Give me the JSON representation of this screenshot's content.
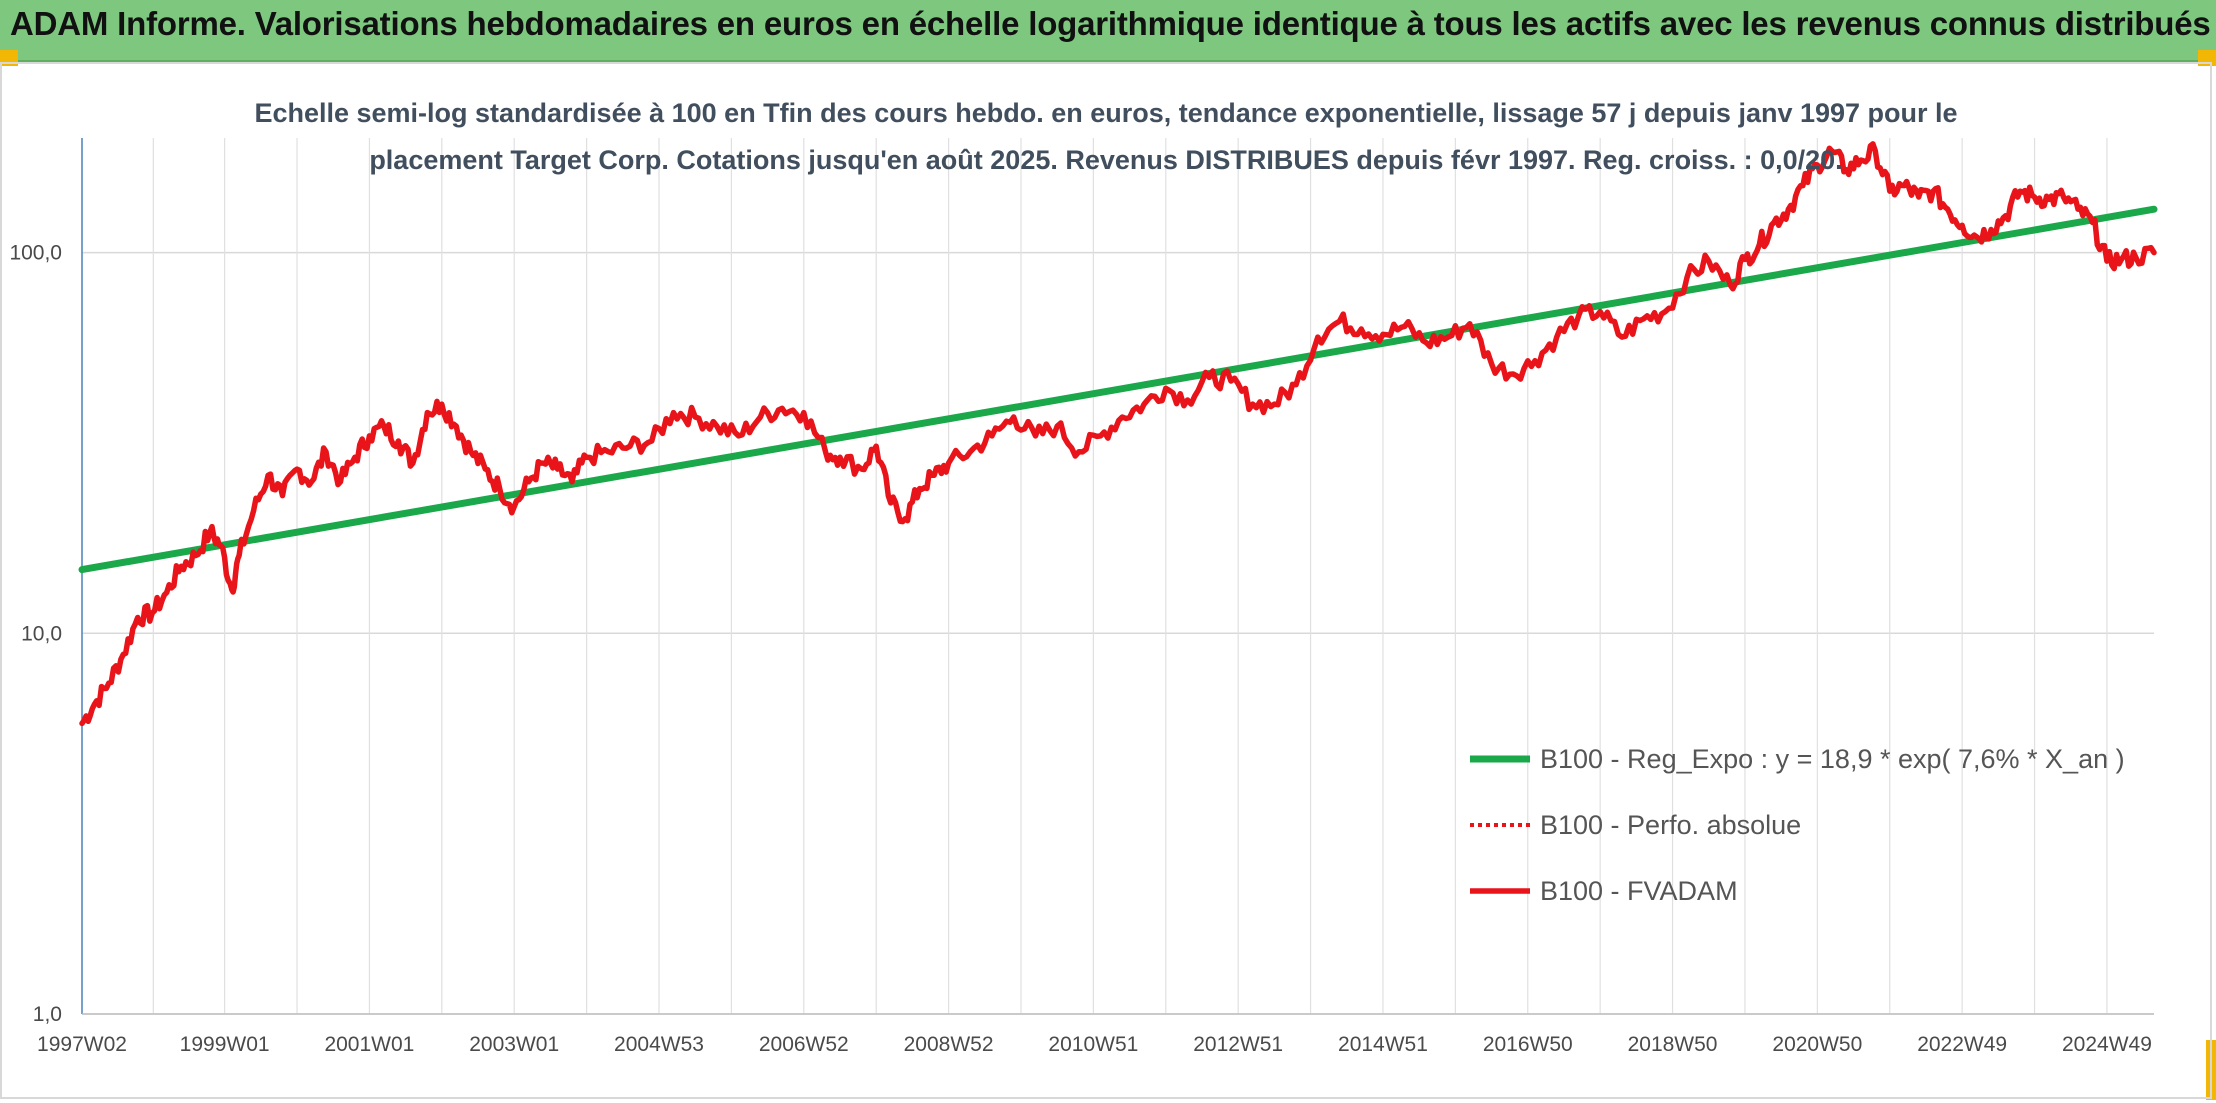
{
  "header": {
    "title": "ADAM Informe. Valorisations hebdomadaires en euros en échelle logarithmique identique à tous les actifs avec les revenus connus distribués"
  },
  "colors": {
    "header_bg": "#7dc77e",
    "regression": "#1aa84a",
    "fvadam": "#e8141a",
    "perf_absolue": "#e8141a",
    "corner": "#f2b705"
  },
  "chart_data": {
    "type": "line",
    "subtitle_lines": [
      "Echelle semi-log standardisée à 100 en Tfin des cours hebdo. en euros, tendance exponentielle, lissage 57 j depuis janv 1997 pour le",
      "placement Target Corp. Cotations jusqu'en août 2025. Revenus DISTRIBUES depuis févr 1997. Reg. croiss. : 0,0/20."
    ],
    "y_scale": "log",
    "ylim": [
      1,
      200
    ],
    "y_ticks": [
      1,
      10,
      100
    ],
    "y_tick_labels": [
      "1,0",
      "10,0",
      "100,0"
    ],
    "xlim": [
      1997.03,
      2025.65
    ],
    "x_ticks": [
      1997.03,
      1999.0,
      2001.0,
      2003.0,
      2005.0,
      2007.0,
      2009.0,
      2011.0,
      2013.0,
      2015.0,
      2017.0,
      2019.0,
      2021.0,
      2023.0,
      2025.0
    ],
    "x_tick_labels": [
      "1997W02",
      "1999W01",
      "2001W01",
      "2003W01",
      "2004W53",
      "2006W52",
      "2008W52",
      "2010W51",
      "2012W51",
      "2014W51",
      "2016W50",
      "2018W50",
      "2020W50",
      "2022W49",
      "2024W49"
    ],
    "grid": true,
    "legend_position": "right",
    "series": [
      {
        "name": "B100 - Reg_Expo : y = 18,9 * exp( 7,6% *  X_an )",
        "style": "solid",
        "x": [
          1997.03,
          2025.65
        ],
        "y": [
          14.7,
          130
        ]
      },
      {
        "name": "B100 - Perfo. absolue",
        "style": "dotted",
        "x": [],
        "y": []
      },
      {
        "name": "B100 - FVADAM",
        "style": "solid",
        "x": [
          1997.03,
          1997.2,
          1997.4,
          1997.6,
          1997.8,
          1998.0,
          1998.2,
          1998.4,
          1998.6,
          1998.8,
          1998.95,
          1999.1,
          1999.2,
          1999.4,
          1999.6,
          1999.8,
          2000.0,
          2000.2,
          2000.4,
          2000.6,
          2000.8,
          2001.0,
          2001.2,
          2001.4,
          2001.6,
          2001.8,
          2002.0,
          2002.2,
          2002.4,
          2002.6,
          2002.8,
          2003.0,
          2003.2,
          2003.4,
          2003.6,
          2003.8,
          2004.0,
          2004.3,
          2004.6,
          2004.9,
          2005.2,
          2005.5,
          2005.8,
          2006.1,
          2006.4,
          2006.7,
          2007.0,
          2007.3,
          2007.5,
          2007.8,
          2008.0,
          2008.2,
          2008.4,
          2008.6,
          2008.8,
          2009.0,
          2009.3,
          2009.6,
          2009.9,
          2010.2,
          2010.5,
          2010.8,
          2011.1,
          2011.4,
          2011.7,
          2012.0,
          2012.3,
          2012.6,
          2012.9,
          2013.2,
          2013.5,
          2013.8,
          2014.1,
          2014.4,
          2014.7,
          2015.0,
          2015.3,
          2015.6,
          2015.9,
          2016.2,
          2016.5,
          2016.8,
          2017.1,
          2017.4,
          2017.7,
          2018.0,
          2018.3,
          2018.6,
          2018.9,
          2019.2,
          2019.5,
          2019.8,
          2020.0,
          2020.2,
          2020.4,
          2020.6,
          2020.8,
          2021.0,
          2021.2,
          2021.4,
          2021.6,
          2021.8,
          2022.0,
          2022.2,
          2022.4,
          2022.6,
          2022.8,
          2023.0,
          2023.2,
          2023.4,
          2023.6,
          2023.8,
          2024.0,
          2024.2,
          2024.4,
          2024.6,
          2024.8,
          2025.0,
          2025.2,
          2025.4,
          2025.65
        ],
        "y": [
          5.8,
          6.5,
          7.4,
          8.8,
          11.0,
          11.3,
          12.8,
          15.0,
          16.0,
          18.5,
          17.0,
          13.0,
          16.0,
          21.0,
          26.0,
          23.0,
          27.0,
          25.0,
          30.0,
          25.0,
          29.0,
          33.0,
          35.0,
          32.0,
          28.0,
          38.0,
          40.0,
          35.0,
          30.0,
          27.0,
          24.0,
          21.5,
          25.0,
          28.0,
          27.0,
          25.0,
          29.0,
          30.0,
          31.0,
          32.0,
          38.0,
          37.0,
          35.0,
          33.0,
          37.0,
          39.0,
          38.0,
          30.0,
          29.0,
          27.0,
          31.0,
          22.0,
          20.0,
          24.0,
          26.0,
          28.0,
          30.0,
          33.0,
          37.0,
          33.0,
          35.0,
          30.0,
          33.0,
          37.0,
          40.0,
          44.0,
          41.0,
          47.0,
          46.0,
          40.0,
          40.0,
          45.0,
          60.0,
          66.0,
          63.0,
          61.0,
          64.0,
          58.0,
          60.0,
          65.0,
          51.0,
          48.0,
          52.0,
          60.0,
          68.0,
          70.0,
          60.0,
          67.0,
          70.0,
          86.0,
          95.0,
          82.0,
          96.0,
          105.0,
          120.0,
          130.0,
          150.0,
          170.0,
          185.0,
          165.0,
          175.0,
          185.0,
          145.0,
          150.0,
          140.0,
          145.0,
          130.0,
          118.0,
          110.0,
          115.0,
          125.0,
          145.0,
          140.0,
          138.0,
          140.0,
          130.0,
          120.0,
          95.0,
          96.0,
          97.0,
          100.0
        ]
      }
    ]
  }
}
